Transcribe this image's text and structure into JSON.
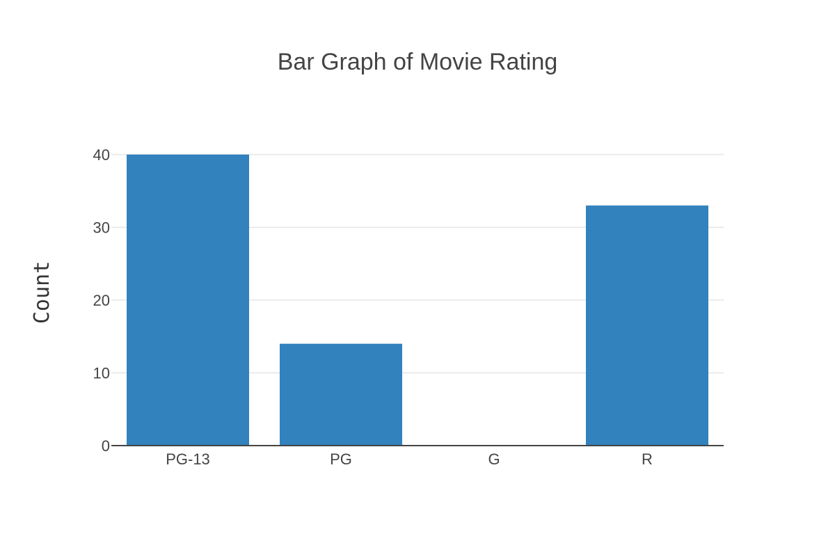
{
  "chart_data": {
    "type": "bar",
    "title": "Bar Graph of Movie Rating",
    "xlabel": "",
    "ylabel": "Count",
    "categories": [
      "PG-13",
      "PG",
      "G",
      "R"
    ],
    "values": [
      40,
      14,
      0,
      33
    ],
    "ylim": [
      0,
      40
    ],
    "yticks": [
      0,
      10,
      20,
      30,
      40
    ],
    "grid": "horizontal",
    "legend": "none",
    "bar_color": "#3182bd",
    "grid_color": "#e5e5e5",
    "axis_color": "#444444"
  }
}
